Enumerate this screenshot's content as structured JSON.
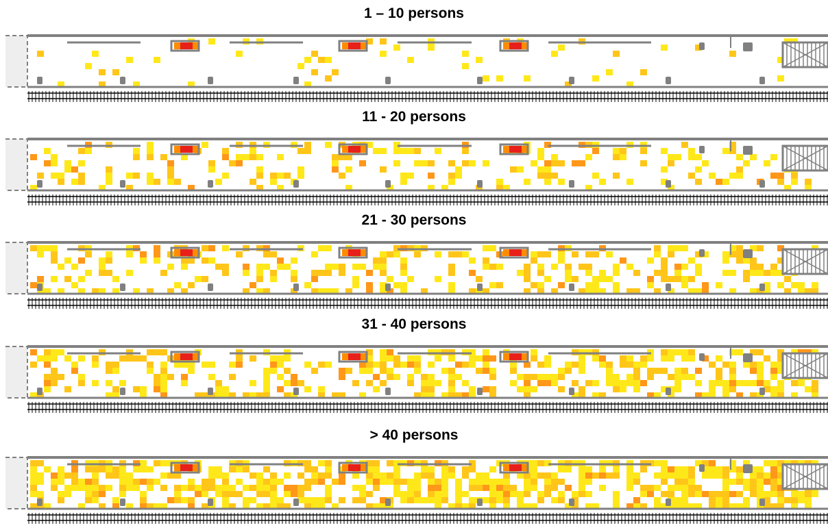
{
  "panels": [
    {
      "title": "1 – 10 persons",
      "density": 0.07,
      "seed": 11
    },
    {
      "title": "11 - 20 persons",
      "density": 0.22,
      "seed": 23
    },
    {
      "title": "21 - 30 persons",
      "density": 0.32,
      "seed": 37
    },
    {
      "title": "31 - 40 persons",
      "density": 0.38,
      "seed": 41
    },
    {
      "title": "> 40 persons",
      "density": 0.55,
      "seed": 59
    }
  ],
  "colors": {
    "heat_low": "#ffe600",
    "heat_mid": "#ffc000",
    "heat_high": "#ff8c00",
    "heat_peak": "#e8201a",
    "structure": "#808080",
    "platform_end": "#eeeeee",
    "track": "#000000"
  },
  "icons": {
    "bench": "bench-icon",
    "pillar": "pillar-icon",
    "stairs": "stairs-icon",
    "track": "railway-track-icon"
  }
}
